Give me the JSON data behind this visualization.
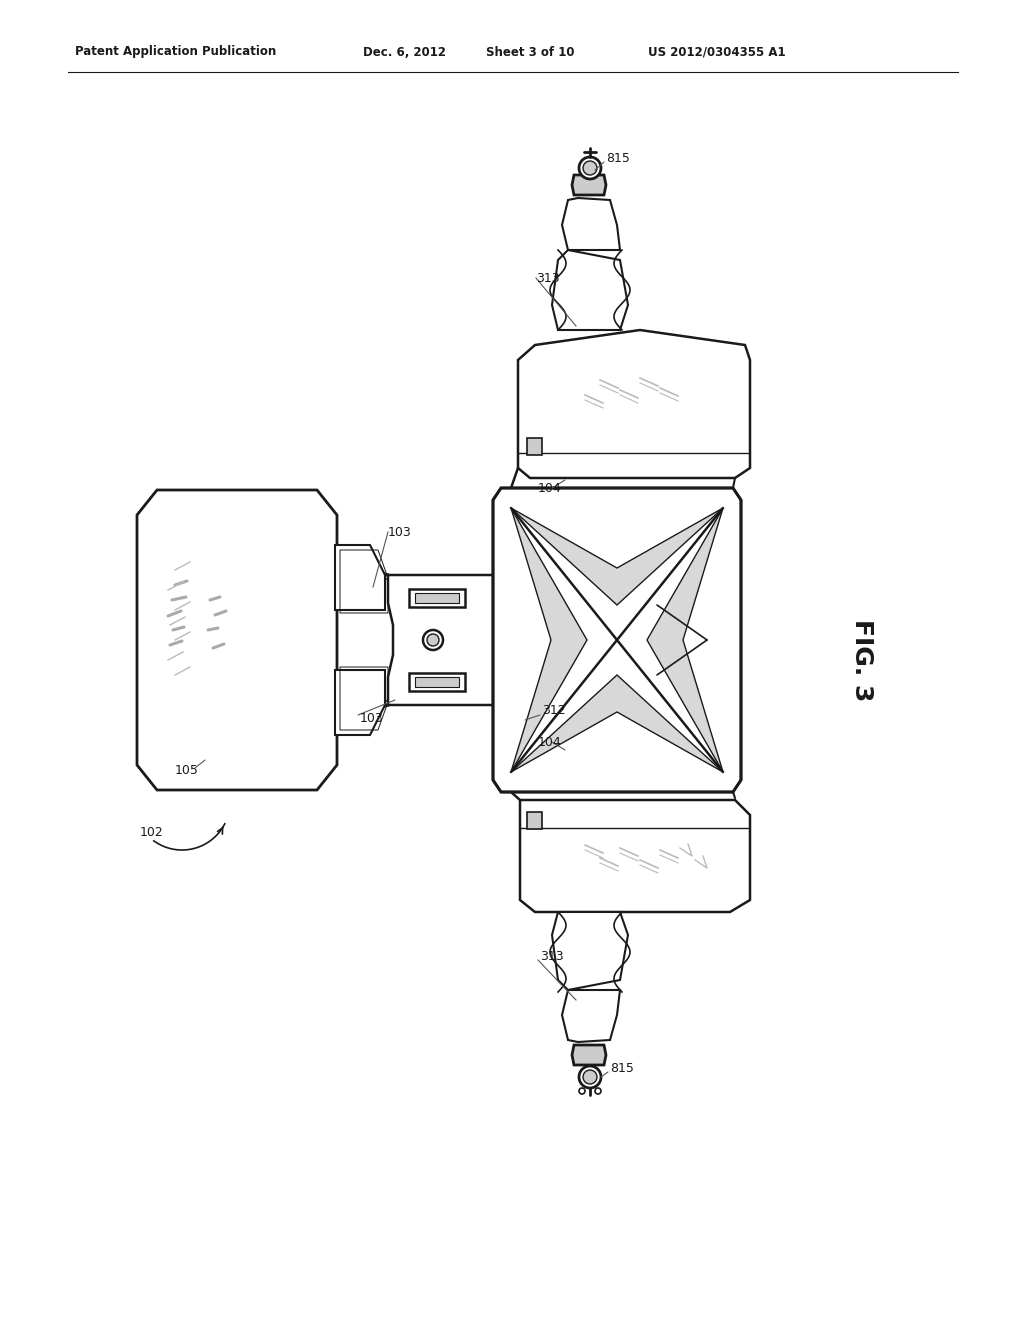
{
  "bg_color": "#ffffff",
  "line_color": "#1a1a1a",
  "gray_light": "#cccccc",
  "gray_med": "#aaaaaa",
  "gray_dark": "#888888",
  "header_left": "Patent Application Publication",
  "header_date": "Dec. 6, 2012",
  "header_sheet": "Sheet 3 of 10",
  "header_patent": "US 2012/0304355 A1",
  "fig_label": "FIG. 3",
  "lbl_815a": "815",
  "lbl_313a": "313",
  "lbl_104a": "104",
  "lbl_103a": "103",
  "lbl_105": "105",
  "lbl_103b": "103",
  "lbl_312": "312",
  "lbl_104b": "104",
  "lbl_102": "102",
  "lbl_313b": "313",
  "lbl_815b": "815"
}
